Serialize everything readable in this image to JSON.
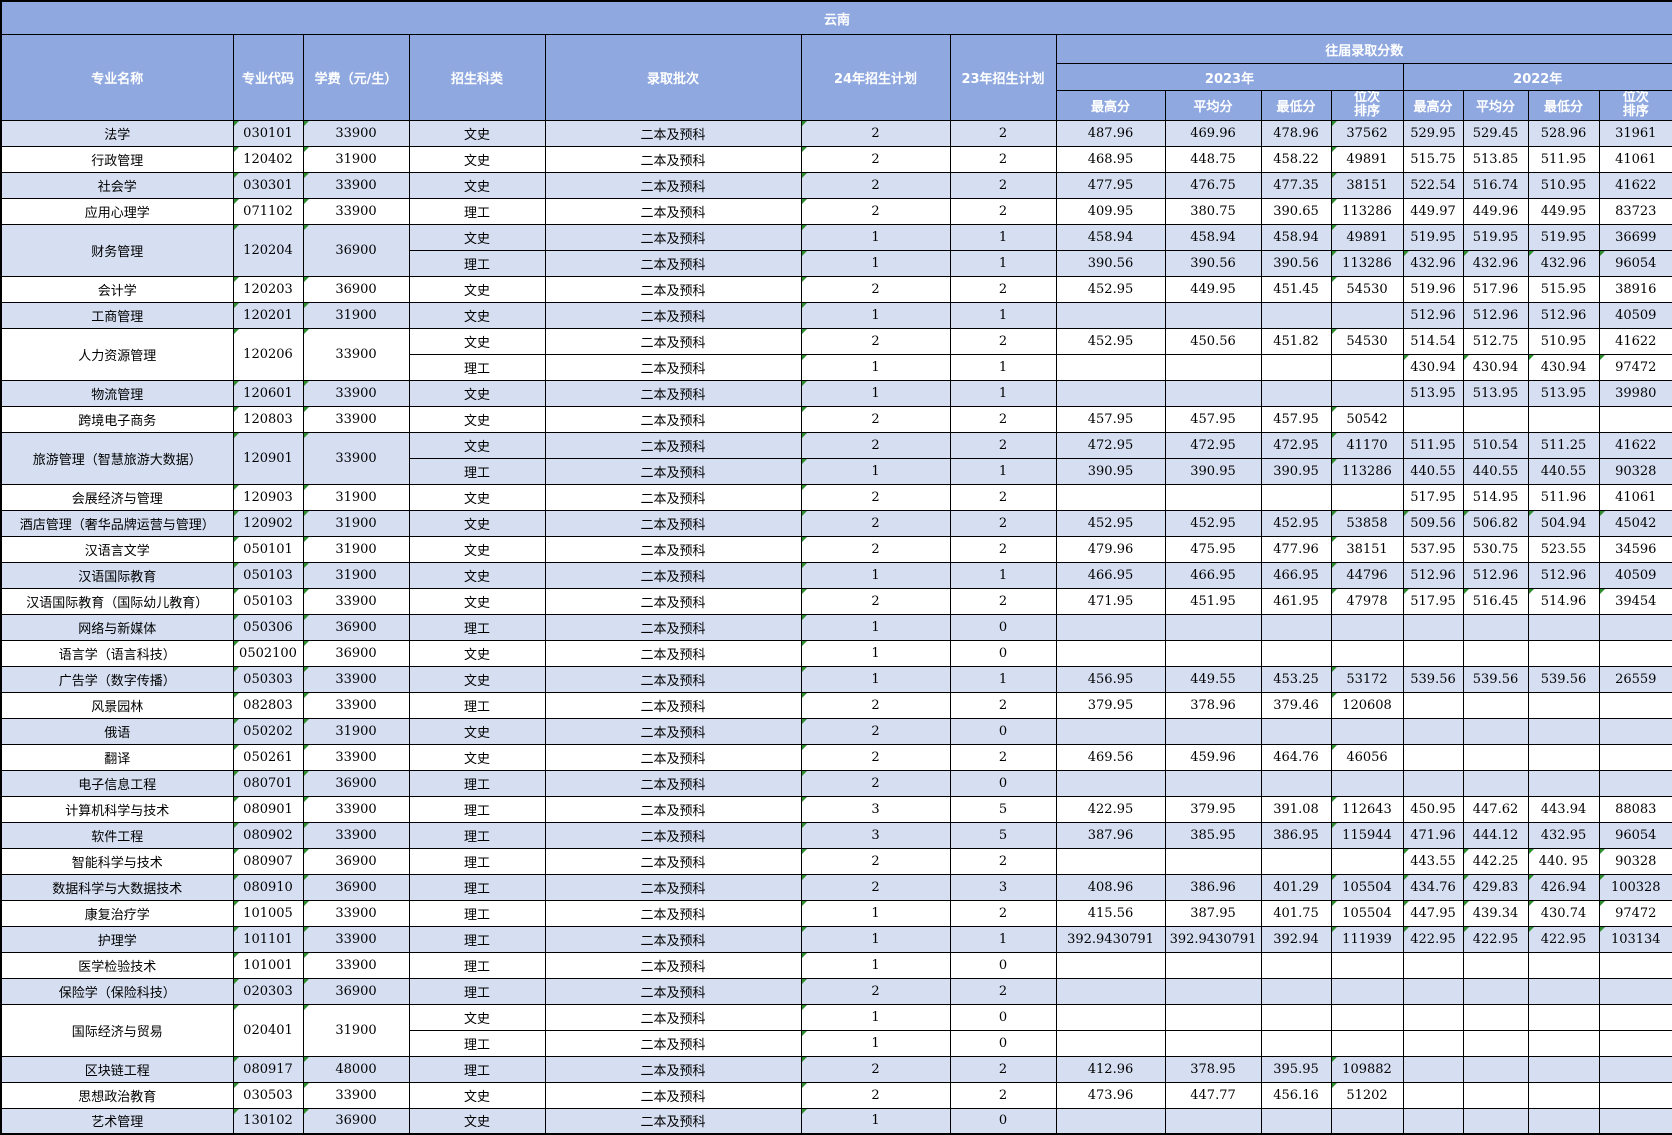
{
  "region": "云南",
  "columns": {
    "major": "专业名称",
    "code": "专业代码",
    "fee": "学费（元/生）",
    "category": "招生科类",
    "batch": "录取批次",
    "plan24": "24年招生计划",
    "plan23": "23年招生计划",
    "past_scores": "往届录取分数",
    "y2023": "2023年",
    "y2022": "2022年",
    "max": "最高分",
    "avg": "平均分",
    "min": "最低分",
    "rank": "位次\n排序"
  },
  "colors": {
    "header_bg": "#8fa8e0",
    "row_alt_bg": "#d6dff2",
    "row_bg": "#ffffff",
    "border": "#000000",
    "flag_marker": "#2f8f2f"
  },
  "majors": [
    {
      "name": "法学",
      "code": "030101",
      "fee": "33900",
      "shade": true,
      "rows": [
        {
          "cat": "文史",
          "batch": "二本及预科",
          "p24": "2",
          "p23": "2",
          "s23": [
            "487.96",
            "469.96",
            "478.96",
            "37562"
          ],
          "s22": [
            "529.95",
            "529.45",
            "528.96",
            "31961"
          ],
          "g22": false
        }
      ]
    },
    {
      "name": "行政管理",
      "code": "120402",
      "fee": "31900",
      "shade": false,
      "rows": [
        {
          "cat": "文史",
          "batch": "二本及预科",
          "p24": "2",
          "p23": "2",
          "s23": [
            "468.95",
            "448.75",
            "458.22",
            "49891"
          ],
          "s22": [
            "515.75",
            "513.85",
            "511.95",
            "41061"
          ],
          "g22": false
        }
      ]
    },
    {
      "name": "社会学",
      "code": "030301",
      "fee": "33900",
      "shade": true,
      "rows": [
        {
          "cat": "文史",
          "batch": "二本及预科",
          "p24": "2",
          "p23": "2",
          "s23": [
            "477.95",
            "476.75",
            "477.35",
            "38151"
          ],
          "s22": [
            "522.54",
            "516.74",
            "510.95",
            "41622"
          ],
          "g22": false
        }
      ]
    },
    {
      "name": "应用心理学",
      "code": "071102",
      "fee": "33900",
      "shade": false,
      "rows": [
        {
          "cat": "理工",
          "batch": "二本及预科",
          "p24": "2",
          "p23": "2",
          "s23": [
            "409.95",
            "380.75",
            "390.65",
            "113286"
          ],
          "s22": [
            "449.97",
            "449.96",
            "449.95",
            "83723"
          ],
          "g22": false
        }
      ]
    },
    {
      "name": "财务管理",
      "code": "120204",
      "fee": "36900",
      "shade": true,
      "rows": [
        {
          "cat": "文史",
          "batch": "二本及预科",
          "p24": "1",
          "p23": "1",
          "s23": [
            "458.94",
            "458.94",
            "458.94",
            "49891"
          ],
          "s22": [
            "519.95",
            "519.95",
            "519.95",
            "36699"
          ],
          "g22": false
        },
        {
          "cat": "理工",
          "batch": "二本及预科",
          "p24": "1",
          "p23": "1",
          "s23": [
            "390.56",
            "390.56",
            "390.56",
            "113286"
          ],
          "s22": [
            "432.96",
            "432.96",
            "432.96",
            "96054"
          ],
          "g22": true
        }
      ]
    },
    {
      "name": "会计学",
      "code": "120203",
      "fee": "36900",
      "shade": false,
      "rows": [
        {
          "cat": "文史",
          "batch": "二本及预科",
          "p24": "2",
          "p23": "2",
          "s23": [
            "452.95",
            "449.95",
            "451.45",
            "54530"
          ],
          "s22": [
            "519.96",
            "517.96",
            "515.95",
            "38916"
          ],
          "g22": false
        }
      ]
    },
    {
      "name": "工商管理",
      "code": "120201",
      "fee": "31900",
      "shade": true,
      "rows": [
        {
          "cat": "文史",
          "batch": "二本及预科",
          "p24": "1",
          "p23": "1",
          "s23": [
            "",
            "",
            "",
            ""
          ],
          "s22": [
            "512.96",
            "512.96",
            "512.96",
            "40509"
          ],
          "g22": false
        }
      ]
    },
    {
      "name": "人力资源管理",
      "code": "120206",
      "fee": "33900",
      "shade": false,
      "rows": [
        {
          "cat": "文史",
          "batch": "二本及预科",
          "p24": "2",
          "p23": "2",
          "s23": [
            "452.95",
            "450.56",
            "451.82",
            "54530"
          ],
          "s22": [
            "514.54",
            "512.75",
            "510.95",
            "41622"
          ],
          "g22": false
        },
        {
          "cat": "理工",
          "batch": "二本及预科",
          "p24": "1",
          "p23": "1",
          "s23": [
            "",
            "",
            "",
            ""
          ],
          "s22": [
            "430.94",
            "430.94",
            "430.94",
            "97472"
          ],
          "g22": true
        }
      ]
    },
    {
      "name": "物流管理",
      "code": "120601",
      "fee": "33900",
      "shade": true,
      "rows": [
        {
          "cat": "文史",
          "batch": "二本及预科",
          "p24": "1",
          "p23": "1",
          "s23": [
            "",
            "",
            "",
            ""
          ],
          "s22": [
            "513.95",
            "513.95",
            "513.95",
            "39980"
          ],
          "g22": false
        }
      ]
    },
    {
      "name": "跨境电子商务",
      "code": "120803",
      "fee": "33900",
      "shade": false,
      "rows": [
        {
          "cat": "文史",
          "batch": "二本及预科",
          "p24": "2",
          "p23": "2",
          "s23": [
            "457.95",
            "457.95",
            "457.95",
            "50542"
          ],
          "s22": [
            "",
            "",
            "",
            ""
          ],
          "g22": false
        }
      ]
    },
    {
      "name": "旅游管理（智慧旅游大数据）",
      "code": "120901",
      "fee": "33900",
      "shade": true,
      "rows": [
        {
          "cat": "文史",
          "batch": "二本及预科",
          "p24": "2",
          "p23": "2",
          "s23": [
            "472.95",
            "472.95",
            "472.95",
            "41170"
          ],
          "s22": [
            "511.95",
            "510.54",
            "511.25",
            "41622"
          ],
          "g22": false
        },
        {
          "cat": "理工",
          "batch": "二本及预科",
          "p24": "1",
          "p23": "1",
          "s23": [
            "390.95",
            "390.95",
            "390.95",
            "113286"
          ],
          "s22": [
            "440.55",
            "440.55",
            "440.55",
            "90328"
          ],
          "g22": false
        }
      ]
    },
    {
      "name": "会展经济与管理",
      "code": "120903",
      "fee": "31900",
      "shade": false,
      "rows": [
        {
          "cat": "文史",
          "batch": "二本及预科",
          "p24": "2",
          "p23": "2",
          "s23": [
            "",
            "",
            "",
            ""
          ],
          "s22": [
            "517.95",
            "514.95",
            "511.96",
            "41061"
          ],
          "g22": false
        }
      ]
    },
    {
      "name": "酒店管理（奢华品牌运营与管理）",
      "code": "120902",
      "fee": "31900",
      "shade": true,
      "rows": [
        {
          "cat": "文史",
          "batch": "二本及预科",
          "p24": "2",
          "p23": "2",
          "s23": [
            "452.95",
            "452.95",
            "452.95",
            "53858"
          ],
          "s22": [
            "509.56",
            "506.82",
            "504.94",
            "45042"
          ],
          "g22": true
        }
      ]
    },
    {
      "name": "汉语言文学",
      "code": "050101",
      "fee": "31900",
      "shade": false,
      "rows": [
        {
          "cat": "文史",
          "batch": "二本及预科",
          "p24": "2",
          "p23": "2",
          "s23": [
            "479.96",
            "475.95",
            "477.96",
            "38151"
          ],
          "s22": [
            "537.95",
            "530.75",
            "523.55",
            "34596"
          ],
          "g22": false
        }
      ]
    },
    {
      "name": "汉语国际教育",
      "code": "050103",
      "fee": "31900",
      "shade": true,
      "rows": [
        {
          "cat": "文史",
          "batch": "二本及预科",
          "p24": "1",
          "p23": "1",
          "s23": [
            "466.95",
            "466.95",
            "466.95",
            "44796"
          ],
          "s22": [
            "512.96",
            "512.96",
            "512.96",
            "40509"
          ],
          "g22": false
        }
      ]
    },
    {
      "name": "汉语国际教育（国际幼儿教育）",
      "code": "050103",
      "fee": "33900",
      "shade": false,
      "rows": [
        {
          "cat": "文史",
          "batch": "二本及预科",
          "p24": "2",
          "p23": "2",
          "s23": [
            "471.95",
            "451.95",
            "461.95",
            "47978"
          ],
          "s22": [
            "517.95",
            "516.45",
            "514.96",
            "39454"
          ],
          "g22": true
        }
      ]
    },
    {
      "name": "网络与新媒体",
      "code": "050306",
      "fee": "36900",
      "shade": true,
      "rows": [
        {
          "cat": "理工",
          "batch": "二本及预科",
          "p24": "1",
          "p23": "0",
          "s23": [
            "",
            "",
            "",
            ""
          ],
          "s22": [
            "",
            "",
            "",
            ""
          ],
          "g22": false
        }
      ]
    },
    {
      "name": "语言学（语言科技）",
      "code": "0502100",
      "fee": "36900",
      "shade": false,
      "rows": [
        {
          "cat": "文史",
          "batch": "二本及预科",
          "p24": "1",
          "p23": "0",
          "s23": [
            "",
            "",
            "",
            ""
          ],
          "s22": [
            "",
            "",
            "",
            ""
          ],
          "g22": false
        }
      ]
    },
    {
      "name": "广告学（数字传播）",
      "code": "050303",
      "fee": "33900",
      "shade": true,
      "rows": [
        {
          "cat": "文史",
          "batch": "二本及预科",
          "p24": "1",
          "p23": "1",
          "s23": [
            "456.95",
            "449.55",
            "453.25",
            "53172"
          ],
          "s22": [
            "539.56",
            "539.56",
            "539.56",
            "26559"
          ],
          "g22": false
        }
      ]
    },
    {
      "name": "风景园林",
      "code": "082803",
      "fee": "33900",
      "shade": false,
      "rows": [
        {
          "cat": "理工",
          "batch": "二本及预科",
          "p24": "2",
          "p23": "2",
          "s23": [
            "379.95",
            "378.96",
            "379.46",
            "120608"
          ],
          "s22": [
            "",
            "",
            "",
            ""
          ],
          "g22": false
        }
      ]
    },
    {
      "name": "俄语",
      "code": "050202",
      "fee": "31900",
      "shade": true,
      "rows": [
        {
          "cat": "文史",
          "batch": "二本及预科",
          "p24": "2",
          "p23": "0",
          "s23": [
            "",
            "",
            "",
            ""
          ],
          "s22": [
            "",
            "",
            "",
            ""
          ],
          "g22": false
        }
      ]
    },
    {
      "name": "翻译",
      "code": "050261",
      "fee": "33900",
      "shade": false,
      "rows": [
        {
          "cat": "文史",
          "batch": "二本及预科",
          "p24": "2",
          "p23": "2",
          "s23": [
            "469.56",
            "459.96",
            "464.76",
            "46056"
          ],
          "s22": [
            "",
            "",
            "",
            ""
          ],
          "g22": false
        }
      ]
    },
    {
      "name": "电子信息工程",
      "code": "080701",
      "fee": "36900",
      "shade": true,
      "rows": [
        {
          "cat": "理工",
          "batch": "二本及预科",
          "p24": "2",
          "p23": "0",
          "s23": [
            "",
            "",
            "",
            ""
          ],
          "s22": [
            "",
            "",
            "",
            ""
          ],
          "g22": false
        }
      ]
    },
    {
      "name": "计算机科学与技术",
      "code": "080901",
      "fee": "33900",
      "shade": false,
      "rows": [
        {
          "cat": "理工",
          "batch": "二本及预科",
          "p24": "3",
          "p23": "5",
          "s23": [
            "422.95",
            "379.95",
            "391.08",
            "112643"
          ],
          "s22": [
            "450.95",
            "447.62",
            "443.94",
            "88083"
          ],
          "g22": false
        }
      ]
    },
    {
      "name": "软件工程",
      "code": "080902",
      "fee": "33900",
      "shade": true,
      "rows": [
        {
          "cat": "理工",
          "batch": "二本及预科",
          "p24": "3",
          "p23": "5",
          "s23": [
            "387.96",
            "385.95",
            "386.95",
            "115944"
          ],
          "s22": [
            "471.96",
            "444.12",
            "432.95",
            "96054"
          ],
          "g22": false
        }
      ]
    },
    {
      "name": "智能科学与技术",
      "code": "080907",
      "fee": "36900",
      "shade": false,
      "rows": [
        {
          "cat": "理工",
          "batch": "二本及预科",
          "p24": "2",
          "p23": "2",
          "s23": [
            "",
            "",
            "",
            ""
          ],
          "s22": [
            "443.55",
            "442.25",
            "440. 95",
            "90328"
          ],
          "g22": true
        }
      ]
    },
    {
      "name": "数据科学与大数据技术",
      "code": "080910",
      "fee": "36900",
      "shade": true,
      "rows": [
        {
          "cat": "理工",
          "batch": "二本及预科",
          "p24": "2",
          "p23": "3",
          "s23": [
            "408.96",
            "386.96",
            "401.29",
            "105504"
          ],
          "s22": [
            "434.76",
            "429.83",
            "426.94",
            "100328"
          ],
          "g22": true
        }
      ]
    },
    {
      "name": "康复治疗学",
      "code": "101005",
      "fee": "33900",
      "shade": false,
      "rows": [
        {
          "cat": "理工",
          "batch": "二本及预科",
          "p24": "1",
          "p23": "2",
          "s23": [
            "415.56",
            "387.95",
            "401.75",
            "105504"
          ],
          "s22": [
            "447.95",
            "439.34",
            "430.74",
            "97472"
          ],
          "g22": true
        }
      ]
    },
    {
      "name": "护理学",
      "code": "101101",
      "fee": "33900",
      "shade": true,
      "rows": [
        {
          "cat": "理工",
          "batch": "二本及预科",
          "p24": "1",
          "p23": "1",
          "s23": [
            "392.9430791",
            "392.9430791",
            "392.94",
            "111939"
          ],
          "s22": [
            "422.95",
            "422.95",
            "422.95",
            "103134"
          ],
          "g22": true
        }
      ]
    },
    {
      "name": "医学检验技术",
      "code": "101001",
      "fee": "33900",
      "shade": false,
      "rows": [
        {
          "cat": "理工",
          "batch": "二本及预科",
          "p24": "1",
          "p23": "0",
          "s23": [
            "",
            "",
            "",
            ""
          ],
          "s22": [
            "",
            "",
            "",
            ""
          ],
          "g22": false
        }
      ]
    },
    {
      "name": "保险学（保险科技）",
      "code": "020303",
      "fee": "36900",
      "shade": true,
      "rows": [
        {
          "cat": "理工",
          "batch": "二本及预科",
          "p24": "2",
          "p23": "2",
          "s23": [
            "",
            "",
            "",
            ""
          ],
          "s22": [
            "",
            "",
            "",
            ""
          ],
          "g22": false
        }
      ]
    },
    {
      "name": "国际经济与贸易",
      "code": "020401",
      "fee": "31900",
      "shade": false,
      "rows": [
        {
          "cat": "文史",
          "batch": "二本及预科",
          "p24": "1",
          "p23": "0",
          "s23": [
            "",
            "",
            "",
            ""
          ],
          "s22": [
            "",
            "",
            "",
            ""
          ],
          "g22": false
        },
        {
          "cat": "理工",
          "batch": "二本及预科",
          "p24": "1",
          "p23": "0",
          "s23": [
            "",
            "",
            "",
            ""
          ],
          "s22": [
            "",
            "",
            "",
            ""
          ],
          "g22": false
        }
      ]
    },
    {
      "name": "区块链工程",
      "code": "080917",
      "fee": "48000",
      "shade": true,
      "rows": [
        {
          "cat": "理工",
          "batch": "二本及预科",
          "p24": "2",
          "p23": "2",
          "s23": [
            "412.96",
            "378.95",
            "395.95",
            "109882"
          ],
          "s22": [
            "",
            "",
            "",
            ""
          ],
          "g22": false
        }
      ]
    },
    {
      "name": "思想政治教育",
      "code": "030503",
      "fee": "33900",
      "shade": false,
      "rows": [
        {
          "cat": "文史",
          "batch": "二本及预科",
          "p24": "2",
          "p23": "2",
          "s23": [
            "473.96",
            "447.77",
            "456.16",
            "51202"
          ],
          "s22": [
            "",
            "",
            "",
            ""
          ],
          "g22": false
        }
      ]
    },
    {
      "name": "艺术管理",
      "code": "130102",
      "fee": "36900",
      "shade": true,
      "rows": [
        {
          "cat": "文史",
          "batch": "二本及预科",
          "p24": "1",
          "p23": "0",
          "s23": [
            "",
            "",
            "",
            ""
          ],
          "s22": [
            "",
            "",
            "",
            ""
          ],
          "g22": false
        }
      ]
    }
  ]
}
